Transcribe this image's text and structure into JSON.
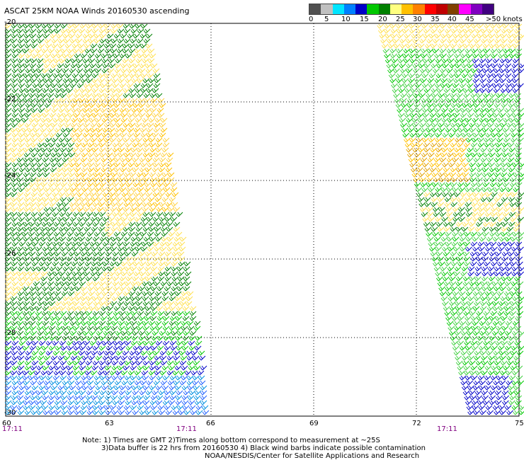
{
  "title": "ASCAT 25KM NOAA Winds 20160530 ascending",
  "legend": {
    "colors": [
      "#505050",
      "#c0c0c0",
      "#00e5ff",
      "#0080ff",
      "#0000c8",
      "#00c800",
      "#008000",
      "#ffff80",
      "#ffc000",
      "#ff8000",
      "#ff0000",
      "#c00000",
      "#804000",
      "#ff00ff",
      "#8000c0",
      "#400080"
    ],
    "labels": [
      "0",
      "5",
      "10",
      "15",
      "20",
      "25",
      "30",
      "35",
      "40",
      "45",
      ">50 knots"
    ]
  },
  "map": {
    "lat_labels": [
      "-20",
      "-22",
      "-24",
      "-26",
      "-28",
      "-30"
    ],
    "lon_labels": [
      "60",
      "63",
      "66",
      "69",
      "72",
      "75"
    ],
    "time_labels": [
      "17:11",
      "17:11",
      "17:11"
    ],
    "lat_range": [
      -30,
      -20
    ],
    "lon_range": [
      60,
      75
    ]
  },
  "notes": {
    "line1": "Note: 1) Times are GMT 2)Times along bottom correspond to measurement at ~25S",
    "line2": "3)Data buffer is 22 hrs from 20160530 4) Black wind barbs indicate possible contamination",
    "line3": "NOAA/NESDIS/Center for Satellite Applications and Research"
  }
}
